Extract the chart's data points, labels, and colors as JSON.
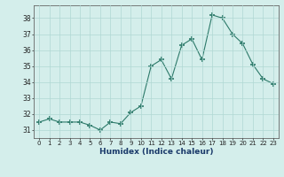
{
  "x": [
    0,
    1,
    2,
    3,
    4,
    5,
    6,
    7,
    8,
    9,
    10,
    11,
    12,
    13,
    14,
    15,
    16,
    17,
    18,
    19,
    20,
    21,
    22,
    23
  ],
  "y": [
    31.5,
    31.7,
    31.5,
    31.5,
    31.5,
    31.3,
    31.0,
    31.5,
    31.4,
    32.1,
    32.5,
    35.0,
    35.4,
    34.2,
    36.3,
    36.7,
    35.4,
    38.2,
    38.0,
    37.0,
    36.4,
    35.1,
    34.2,
    33.9
  ],
  "xlabel": "Humidex (Indice chaleur)",
  "ylim": [
    30.5,
    38.8
  ],
  "xlim": [
    -0.5,
    23.5
  ],
  "yticks": [
    31,
    32,
    33,
    34,
    35,
    36,
    37,
    38
  ],
  "xticks": [
    0,
    1,
    2,
    3,
    4,
    5,
    6,
    7,
    8,
    9,
    10,
    11,
    12,
    13,
    14,
    15,
    16,
    17,
    18,
    19,
    20,
    21,
    22,
    23
  ],
  "line_color": "#2d7a6a",
  "marker_color": "#2d7a6a",
  "bg_color": "#d4eeeb",
  "grid_color": "#b0d8d4",
  "axis_color": "#666666",
  "tick_label_color": "#222222",
  "xlabel_color": "#1a3a6a"
}
